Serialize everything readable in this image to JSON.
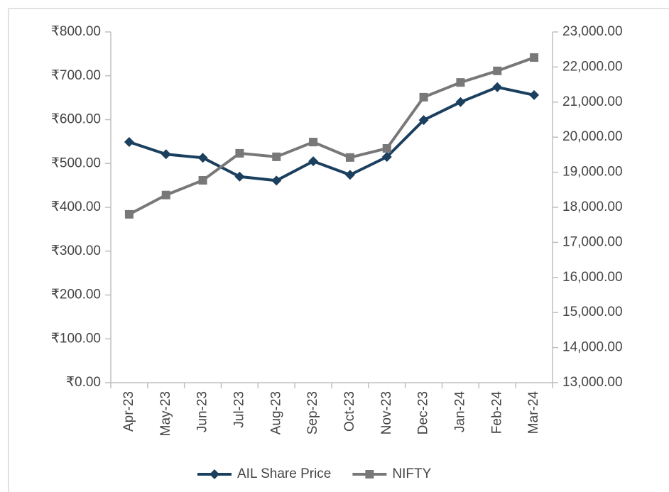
{
  "chart_data": {
    "type": "line",
    "categories": [
      "Apr-23",
      "May-23",
      "Jun-23",
      "Jul-23",
      "Aug-23",
      "Sep-23",
      "Oct-23",
      "Nov-23",
      "Dec-23",
      "Jan-24",
      "Feb-24",
      "Mar-24"
    ],
    "series": [
      {
        "name": "AIL Share Price",
        "color": "#1b3f5e",
        "marker": "diamond",
        "values": [
          549,
          521,
          513,
          470,
          461,
          505,
          474,
          515,
          599,
          640,
          674,
          656
        ]
      },
      {
        "name": "NIFTY",
        "color": "#787878",
        "marker": "square",
        "axis": "y2",
        "values": [
          17800,
          18350,
          18770,
          19540,
          19440,
          19860,
          19420,
          19680,
          21140,
          21560,
          21890,
          22270
        ]
      }
    ],
    "ylim": [
      0,
      800
    ],
    "yticks": [
      {
        "value": 0,
        "label": "₹0.00"
      },
      {
        "value": 100,
        "label": "₹100.00"
      },
      {
        "value": 200,
        "label": "₹200.00"
      },
      {
        "value": 300,
        "label": "₹300.00"
      },
      {
        "value": 400,
        "label": "₹400.00"
      },
      {
        "value": 500,
        "label": "₹500.00"
      },
      {
        "value": 600,
        "label": "₹600.00"
      },
      {
        "value": 700,
        "label": "₹700.00"
      },
      {
        "value": 800,
        "label": "₹800.00"
      }
    ],
    "y2lim": [
      13000,
      23000
    ],
    "y2ticks": [
      {
        "value": 13000,
        "label": "13,000.00"
      },
      {
        "value": 14000,
        "label": "14,000.00"
      },
      {
        "value": 15000,
        "label": "15,000.00"
      },
      {
        "value": 16000,
        "label": "16,000.00"
      },
      {
        "value": 17000,
        "label": "17,000.00"
      },
      {
        "value": 18000,
        "label": "18,000.00"
      },
      {
        "value": 19000,
        "label": "19,000.00"
      },
      {
        "value": 20000,
        "label": "20,000.00"
      },
      {
        "value": 21000,
        "label": "21,000.00"
      },
      {
        "value": 22000,
        "label": "22,000.00"
      },
      {
        "value": 23000,
        "label": "23,000.00"
      }
    ],
    "legend": "bottom"
  }
}
